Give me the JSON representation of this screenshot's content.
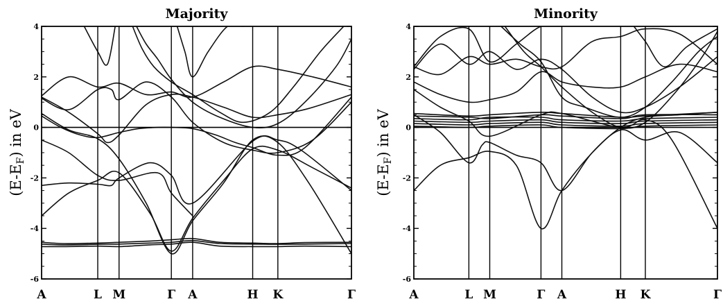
{
  "figure": {
    "ylabel": "(E-Eₑ) in eV",
    "ylabel_parts": {
      "prefix": "(E-E",
      "sub": "F",
      "suffix": ")  in eV"
    }
  },
  "chart_data": [
    {
      "type": "line",
      "title": "Majority",
      "ylabel": "(E-EF) in eV",
      "ylim": [
        -6,
        4
      ],
      "yticks": [
        -6,
        -4,
        -2,
        0,
        2,
        4
      ],
      "kpoint_labels": [
        "A",
        "L",
        "M",
        "Γ",
        "A",
        "H",
        "K",
        "Γ"
      ],
      "kpoint_positions": [
        0,
        1.45,
        2.0,
        3.35,
        3.9,
        5.45,
        6.1,
        8.0
      ],
      "xlim": [
        0,
        8.0
      ],
      "fermi_level": 0,
      "grid": false,
      "series": [
        {
          "x": [
            0,
            0.6,
            1.45,
            2.0,
            2.8,
            3.35,
            3.9,
            4.6,
            5.45,
            6.1,
            6.8,
            8.0
          ],
          "y": [
            -4.62,
            -4.65,
            -4.63,
            -4.62,
            -4.58,
            -4.55,
            -4.48,
            -4.6,
            -4.62,
            -4.63,
            -4.62,
            -4.6
          ]
        },
        {
          "x": [
            0,
            0.6,
            1.45,
            2.0,
            2.8,
            3.35,
            3.9,
            4.6,
            5.45,
            6.1,
            6.8,
            8.0
          ],
          "y": [
            -4.72,
            -4.72,
            -4.7,
            -4.72,
            -4.65,
            -4.62,
            -4.55,
            -4.7,
            -4.72,
            -4.72,
            -4.7,
            -4.72
          ]
        },
        {
          "x": [
            0,
            0.6,
            1.45,
            2.0,
            2.8,
            3.35,
            3.9,
            4.6,
            5.45,
            6.1,
            6.8,
            8.0
          ],
          "y": [
            -4.55,
            -4.6,
            -4.58,
            -4.55,
            -4.5,
            -4.45,
            -4.4,
            -4.55,
            -4.58,
            -4.6,
            -4.56,
            -4.55
          ]
        },
        {
          "x": [
            0,
            0.7,
            1.45,
            2.0,
            2.8,
            3.35,
            3.9,
            4.7,
            5.45,
            6.1,
            7.0,
            8.0
          ],
          "y": [
            -3.5,
            -2.6,
            -2.1,
            -1.8,
            -3.4,
            -4.9,
            -3.6,
            -2.1,
            -0.85,
            -0.9,
            -1.6,
            -2.4
          ]
        },
        {
          "x": [
            0,
            0.7,
            1.45,
            2.0,
            2.7,
            3.35,
            3.9,
            4.7,
            5.45,
            6.1,
            6.9,
            8.0
          ],
          "y": [
            0.55,
            -0.1,
            -0.45,
            -1.25,
            -3.0,
            -5.0,
            -3.7,
            -2.2,
            -0.5,
            -0.6,
            -2.2,
            -5.0
          ]
        },
        {
          "x": [
            0,
            0.7,
            1.45,
            1.7,
            2.0,
            2.7,
            3.35,
            3.9,
            4.7,
            5.45,
            6.1,
            6.9,
            8.0
          ],
          "y": [
            1.2,
            0.6,
            -0.25,
            -0.6,
            -0.3,
            0.9,
            1.3,
            1.2,
            0.8,
            0.4,
            0.5,
            0.75,
            1.3
          ]
        },
        {
          "x": [
            0,
            0.7,
            1.45,
            2.0,
            2.7,
            3.35,
            3.9,
            4.7,
            5.45,
            6.1,
            7.0,
            8.0
          ],
          "y": [
            1.25,
            2.0,
            1.6,
            1.75,
            1.3,
            1.4,
            1.2,
            1.8,
            2.4,
            2.3,
            2.0,
            1.6
          ]
        },
        {
          "x": [
            0,
            0.5,
            1.0,
            1.45,
            2.0,
            2.5,
            3.0,
            3.35,
            3.9,
            4.5,
            5.0,
            5.45,
            6.1,
            6.8,
            8.0
          ],
          "y": [
            0.45,
            0.0,
            -0.3,
            -0.4,
            -0.2,
            -0.05,
            0.0,
            0.0,
            -0.05,
            -0.3,
            -0.6,
            -0.8,
            -1.1,
            -0.8,
            1.2
          ]
        },
        {
          "x": [
            0,
            0.7,
            1.45,
            1.8,
            2.0,
            2.7,
            3.35,
            3.9,
            4.7,
            5.45,
            6.1,
            7.0,
            8.0
          ],
          "y": [
            1.15,
            0.7,
            1.5,
            1.5,
            1.1,
            1.8,
            1.2,
            0.2,
            -0.6,
            -0.9,
            -1.0,
            -0.5,
            1.0
          ]
        },
        {
          "x": [
            0,
            0.7,
            1.45,
            2.0,
            3.0,
            3.35,
            3.9
          ],
          "y": [
            -0.5,
            -1.0,
            -1.9,
            -2.1,
            -1.8,
            -2.6,
            -3.5
          ]
        },
        {
          "x": [
            0,
            0.7,
            1.45,
            1.8,
            2.0,
            2.8,
            3.35,
            3.9,
            5.45,
            6.1,
            6.7,
            8.0
          ],
          "y": [
            -2.3,
            -2.2,
            -2.25,
            -2.3,
            -2.0,
            -1.4,
            -1.9,
            -3.0,
            -0.55,
            -0.5,
            -0.9,
            -2.5
          ]
        },
        {
          "x": [
            1.1,
            1.45,
            1.7,
            1.9
          ],
          "y": [
            4.0,
            3.0,
            2.5,
            4.0
          ]
        },
        {
          "x": [
            2.35,
            2.6,
            2.9,
            3.35,
            3.9,
            4.6,
            5.2,
            5.9,
            6.5,
            7.2,
            7.8
          ],
          "y": [
            4.0,
            3.1,
            2.4,
            1.8,
            1.3,
            0.6,
            0.2,
            0.6,
            1.6,
            3.0,
            4.0
          ]
        },
        {
          "x": [
            2.45,
            2.7,
            3.0,
            3.35,
            3.9,
            4.6,
            5.45,
            6.1,
            6.8,
            7.6,
            8.0
          ],
          "y": [
            4.0,
            3.3,
            2.7,
            1.9,
            1.0,
            0.4,
            0.0,
            0.15,
            1.0,
            2.4,
            3.5
          ]
        },
        {
          "x": [
            3.5,
            3.7,
            3.9,
            4.3,
            4.8,
            5.2
          ],
          "y": [
            4.0,
            3.0,
            2.0,
            3.0,
            4.0,
            4.0
          ]
        }
      ]
    },
    {
      "type": "line",
      "title": "Minority",
      "ylabel": "(E-EF) in eV",
      "ylim": [
        -6,
        4
      ],
      "yticks": [
        -6,
        -4,
        -2,
        0,
        2,
        4
      ],
      "kpoint_labels": [
        "A",
        "L",
        "M",
        "Γ",
        "A",
        "H",
        "K",
        "Γ"
      ],
      "kpoint_positions": [
        0,
        1.45,
        2.0,
        3.35,
        3.9,
        5.45,
        6.1,
        8.0
      ],
      "xlim": [
        0,
        8.0
      ],
      "fermi_level": 0,
      "grid": false,
      "series": [
        {
          "x": [
            0,
            1.45,
            2.0,
            3.35,
            3.9,
            5.45,
            6.1,
            8.0
          ],
          "y": [
            0.55,
            0.45,
            0.5,
            0.6,
            0.55,
            0.4,
            0.45,
            0.6
          ]
        },
        {
          "x": [
            0,
            1.45,
            2.0,
            3.35,
            3.9,
            5.45,
            6.1,
            8.0
          ],
          "y": [
            0.45,
            0.4,
            0.35,
            0.5,
            0.45,
            0.35,
            0.5,
            0.5
          ]
        },
        {
          "x": [
            0,
            1.45,
            2.0,
            3.35,
            3.9,
            5.45,
            6.1,
            8.0
          ],
          "y": [
            0.35,
            0.3,
            0.4,
            0.4,
            0.3,
            0.25,
            0.35,
            0.4
          ]
        },
        {
          "x": [
            0,
            1.45,
            2.0,
            3.35,
            3.9,
            5.45,
            6.1,
            8.0
          ],
          "y": [
            0.25,
            0.2,
            0.25,
            0.3,
            0.2,
            0.15,
            0.25,
            0.3
          ]
        },
        {
          "x": [
            0,
            1.45,
            2.0,
            3.35,
            3.9,
            5.45,
            6.1,
            8.0
          ],
          "y": [
            0.15,
            0.1,
            0.15,
            0.2,
            0.1,
            0.05,
            0.15,
            0.2
          ]
        },
        {
          "x": [
            0,
            1.45,
            2.0,
            3.35,
            3.9,
            5.45,
            6.1,
            8.0
          ],
          "y": [
            0.05,
            0.0,
            0.05,
            0.1,
            0.0,
            -0.05,
            0.05,
            0.1
          ]
        },
        {
          "x": [
            0,
            0.7,
            1.45,
            2.0,
            2.7,
            3.35,
            3.9,
            4.7,
            5.45,
            6.1,
            7.0,
            8.0
          ],
          "y": [
            -2.5,
            -1.5,
            -1.2,
            -0.95,
            -1.5,
            -4.0,
            -2.5,
            -1.0,
            0.0,
            0.4,
            0.5,
            0.6
          ]
        },
        {
          "x": [
            0,
            0.7,
            1.45,
            1.8,
            2.0,
            2.7,
            3.35,
            3.9,
            4.7,
            5.45,
            6.1,
            7.0,
            8.0
          ],
          "y": [
            0.5,
            -0.2,
            -1.4,
            -0.7,
            -0.6,
            -1.1,
            -1.4,
            -2.5,
            -1.0,
            -0.1,
            -0.5,
            -0.2,
            -1.4
          ]
        },
        {
          "x": [
            0,
            0.7,
            1.45,
            2.0,
            3.35,
            3.9,
            5.45,
            6.1,
            6.8,
            8.0
          ],
          "y": [
            1.5,
            0.8,
            0.25,
            -0.35,
            0.5,
            0.55,
            0.0,
            0.3,
            -0.5,
            -4.0
          ]
        },
        {
          "x": [
            0,
            0.7,
            1.45,
            2.0,
            2.7,
            3.35,
            3.9,
            4.7,
            5.45,
            6.1,
            7.0,
            8.0
          ],
          "y": [
            1.8,
            1.3,
            1.0,
            1.1,
            1.4,
            2.2,
            1.8,
            1.6,
            1.6,
            2.0,
            2.5,
            2.2
          ]
        },
        {
          "x": [
            0,
            0.7,
            1.45,
            2.0,
            2.7,
            3.35,
            3.9,
            4.7,
            5.45,
            6.1,
            7.0,
            8.0
          ],
          "y": [
            2.4,
            2.1,
            2.8,
            2.5,
            2.7,
            2.4,
            2.4,
            3.4,
            3.6,
            3.9,
            3.7,
            2.5
          ]
        },
        {
          "x": [
            0,
            0.7,
            1.45,
            2.0,
            2.7,
            3.35,
            3.9,
            4.7,
            5.45,
            6.1,
            7.0,
            8.0
          ],
          "y": [
            2.3,
            3.3,
            2.5,
            3.0,
            2.3,
            2.7,
            2.3,
            1.2,
            0.6,
            0.8,
            1.6,
            2.8
          ]
        },
        {
          "x": [
            0,
            0.7,
            1.45,
            2.0,
            2.7,
            3.35,
            3.9
          ],
          "y": [
            2.4,
            3.6,
            3.9,
            2.6,
            3.3,
            4.0,
            4.0
          ]
        },
        {
          "x": [
            2.3,
            2.8,
            3.35,
            3.9,
            4.5,
            5.45,
            6.1,
            6.8,
            7.5,
            8.0
          ],
          "y": [
            4.0,
            3.3,
            2.6,
            1.2,
            0.8,
            0.4,
            0.8,
            1.8,
            3.0,
            3.6
          ]
        },
        {
          "x": [
            2.4,
            2.9,
            3.35,
            3.9,
            4.7,
            5.45,
            6.1,
            6.9,
            7.6,
            8.0
          ],
          "y": [
            4.0,
            3.0,
            2.4,
            1.6,
            0.6,
            0.0,
            0.2,
            1.4,
            2.8,
            3.8
          ]
        },
        {
          "x": [
            5.8,
            6.1,
            6.6,
            7.2,
            8.0
          ],
          "y": [
            4.0,
            3.4,
            2.4,
            3.2,
            3.9
          ]
        }
      ]
    }
  ]
}
